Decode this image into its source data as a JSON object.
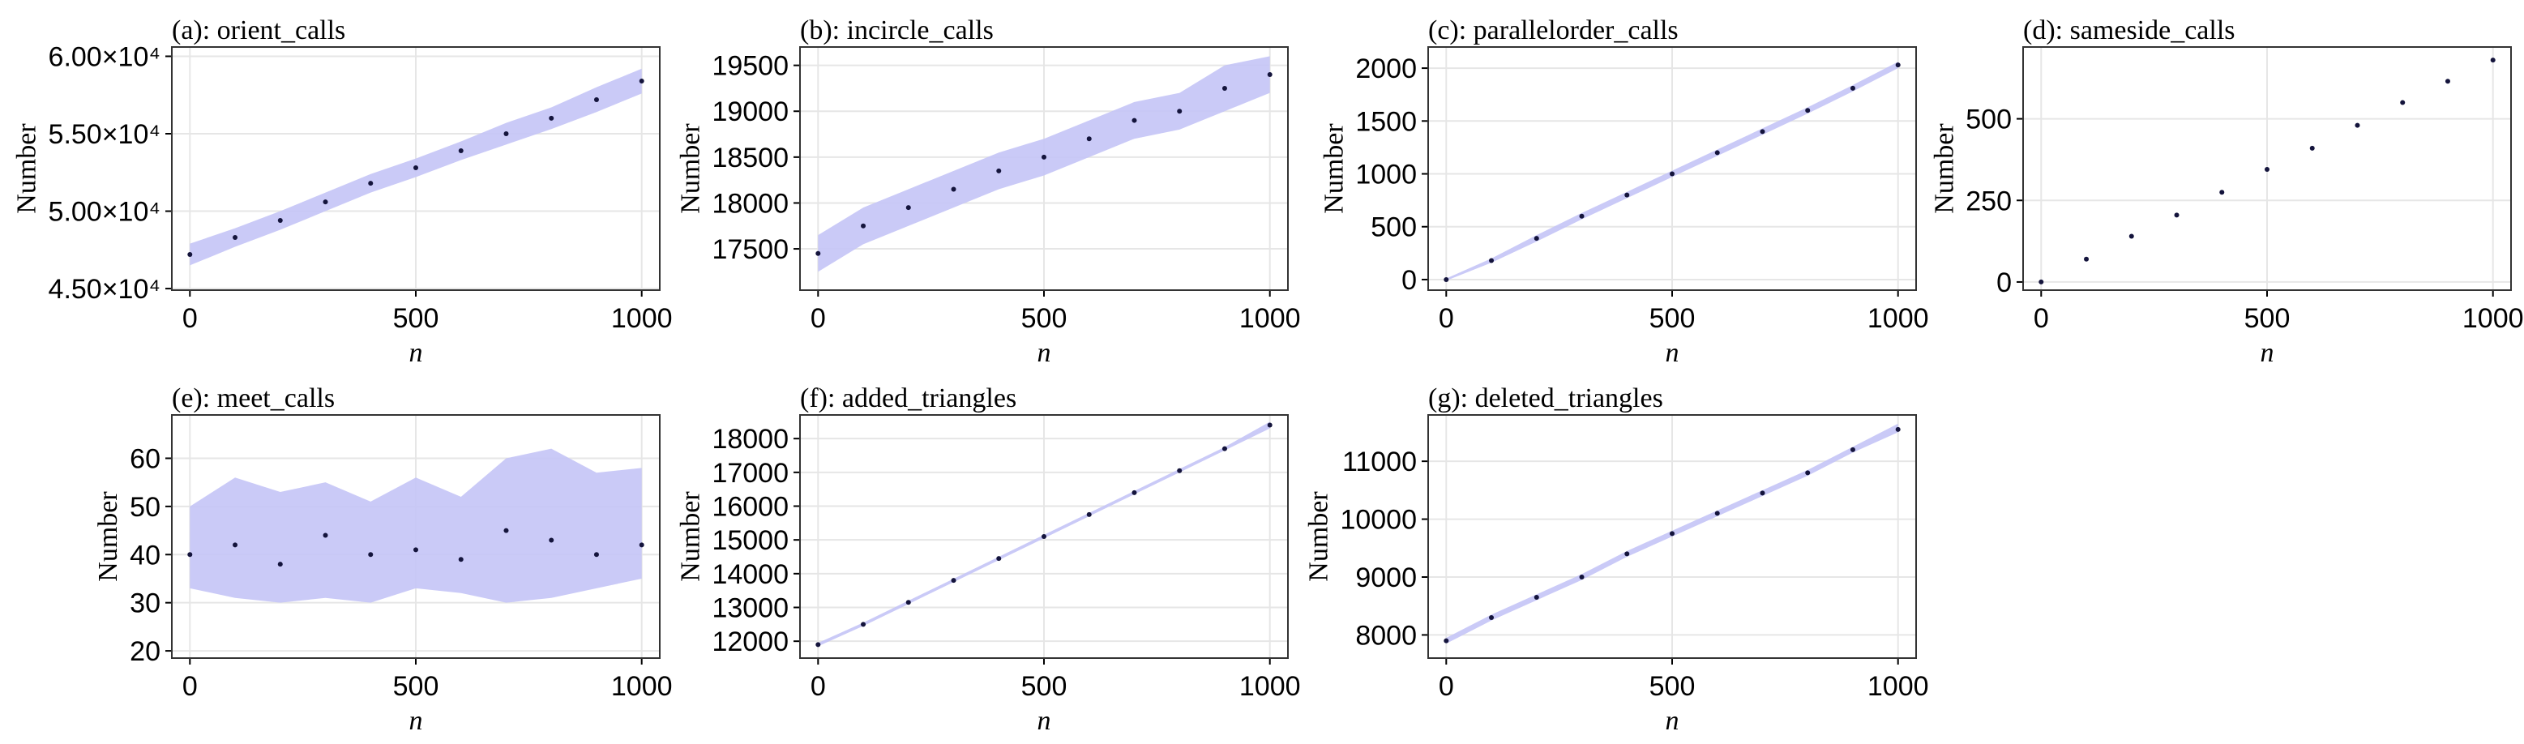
{
  "chart_data": [
    {
      "type": "scatter",
      "title": "(a): orient_calls",
      "xlabel": "n",
      "ylabel": "Number",
      "x": [
        0,
        100,
        200,
        300,
        400,
        500,
        600,
        700,
        800,
        900,
        1000
      ],
      "y": [
        47200,
        48300,
        49400,
        50600,
        51800,
        52800,
        53900,
        55000,
        56000,
        57200,
        58400
      ],
      "band_lower": [
        46500,
        47700,
        48800,
        50000,
        51200,
        52200,
        53300,
        54300,
        55300,
        56400,
        57600
      ],
      "band_upper": [
        47900,
        48900,
        50000,
        51200,
        52400,
        53400,
        54500,
        55700,
        56700,
        58000,
        59200
      ],
      "xlim": [
        -40,
        1040
      ],
      "ylim": [
        44900,
        60600
      ],
      "xticks": [
        0,
        500,
        1000
      ],
      "yticks": [
        {
          "value": 45000,
          "label": "4.50×10⁴"
        },
        {
          "value": 50000,
          "label": "5.00×10⁴"
        },
        {
          "value": 55000,
          "label": "5.50×10⁴"
        },
        {
          "value": 60000,
          "label": "6.00×10⁴"
        }
      ],
      "grid": true,
      "color": "#14143c",
      "band_color": "#c4c4f6"
    },
    {
      "type": "scatter",
      "title": "(b): incircle_calls",
      "xlabel": "n",
      "ylabel": "Number",
      "x": [
        0,
        100,
        200,
        300,
        400,
        500,
        600,
        700,
        800,
        900,
        1000
      ],
      "y": [
        17450,
        17750,
        17950,
        18150,
        18350,
        18500,
        18700,
        18900,
        19000,
        19250,
        19400
      ],
      "band_lower": [
        17250,
        17550,
        17750,
        17950,
        18150,
        18300,
        18500,
        18700,
        18800,
        19000,
        19200
      ],
      "band_upper": [
        17650,
        17950,
        18150,
        18350,
        18550,
        18700,
        18900,
        19100,
        19200,
        19500,
        19600
      ],
      "xlim": [
        -40,
        1040
      ],
      "ylim": [
        17050,
        19700
      ],
      "xticks": [
        0,
        500,
        1000
      ],
      "yticks": [
        17500,
        18000,
        18500,
        19000,
        19500
      ],
      "grid": true,
      "color": "#14143c",
      "band_color": "#c4c4f6"
    },
    {
      "type": "scatter",
      "title": "(c): parallelorder_calls",
      "xlabel": "n",
      "ylabel": "Number",
      "x": [
        0,
        100,
        200,
        300,
        400,
        500,
        600,
        700,
        800,
        900,
        1000
      ],
      "y": [
        0,
        180,
        390,
        600,
        800,
        1000,
        1200,
        1400,
        1600,
        1810,
        2030
      ],
      "band_lower": [
        -10,
        160,
        360,
        570,
        770,
        970,
        1170,
        1370,
        1570,
        1780,
        2000
      ],
      "band_upper": [
        10,
        200,
        420,
        630,
        830,
        1030,
        1230,
        1430,
        1630,
        1840,
        2060
      ],
      "xlim": [
        -40,
        1040
      ],
      "ylim": [
        -100,
        2200
      ],
      "xticks": [
        0,
        500,
        1000
      ],
      "yticks": [
        0,
        500,
        1000,
        1500,
        2000
      ],
      "grid": true,
      "color": "#14143c",
      "band_color": "#c4c4f6"
    },
    {
      "type": "scatter",
      "title": "(d): sameside_calls",
      "xlabel": "n",
      "ylabel": "Number",
      "x": [
        0,
        100,
        200,
        300,
        400,
        500,
        600,
        700,
        800,
        900,
        1000
      ],
      "y": [
        0,
        70,
        140,
        205,
        275,
        345,
        410,
        480,
        550,
        615,
        680
      ],
      "xlim": [
        -40,
        1040
      ],
      "ylim": [
        -25,
        720
      ],
      "xticks": [
        0,
        500,
        1000
      ],
      "yticks": [
        0,
        250,
        500
      ],
      "grid": true,
      "color": "#14143c",
      "band_color": "#c4c4f6"
    },
    {
      "type": "scatter",
      "title": "(e): meet_calls",
      "xlabel": "n",
      "ylabel": "Number",
      "x": [
        0,
        100,
        200,
        300,
        400,
        500,
        600,
        700,
        800,
        900,
        1000
      ],
      "y": [
        40,
        42,
        38,
        44,
        40,
        41,
        39,
        45,
        43,
        40,
        42
      ],
      "band_lower": [
        33,
        31,
        30,
        31,
        30,
        33,
        32,
        30,
        31,
        33,
        35
      ],
      "band_upper": [
        50,
        56,
        53,
        55,
        51,
        56,
        52,
        60,
        62,
        57,
        58
      ],
      "xlim": [
        -40,
        1040
      ],
      "ylim": [
        18.5,
        69
      ],
      "xticks": [
        0,
        500,
        1000
      ],
      "yticks": [
        20,
        30,
        40,
        50,
        60
      ],
      "grid": true,
      "color": "#14143c",
      "band_color": "#c4c4f6"
    },
    {
      "type": "scatter",
      "title": "(f): added_triangles",
      "xlabel": "n",
      "ylabel": "Number",
      "x": [
        0,
        100,
        200,
        300,
        400,
        500,
        600,
        700,
        800,
        900,
        1000
      ],
      "y": [
        11900,
        12500,
        13150,
        13800,
        14450,
        15100,
        15750,
        16400,
        17050,
        17700,
        18400
      ],
      "band_lower": [
        11850,
        12450,
        13100,
        13750,
        14400,
        15050,
        15700,
        16350,
        17000,
        17650,
        18300
      ],
      "band_upper": [
        11950,
        12550,
        13200,
        13850,
        14500,
        15150,
        15800,
        16450,
        17100,
        17750,
        18500
      ],
      "xlim": [
        -40,
        1040
      ],
      "ylim": [
        11500,
        18700
      ],
      "xticks": [
        0,
        500,
        1000
      ],
      "yticks": [
        12000,
        13000,
        14000,
        15000,
        16000,
        17000,
        18000
      ],
      "grid": true,
      "color": "#14143c",
      "band_color": "#c4c4f6"
    },
    {
      "type": "scatter",
      "title": "(g): deleted_triangles",
      "xlabel": "n",
      "ylabel": "Number",
      "x": [
        0,
        100,
        200,
        300,
        400,
        500,
        600,
        700,
        800,
        900,
        1000
      ],
      "y": [
        7900,
        8300,
        8650,
        9000,
        9400,
        9750,
        10100,
        10450,
        10800,
        11200,
        11550
      ],
      "band_lower": [
        7850,
        8250,
        8600,
        8950,
        9350,
        9700,
        10050,
        10400,
        10750,
        11150,
        11500
      ],
      "band_upper": [
        7950,
        8350,
        8700,
        9050,
        9450,
        9800,
        10150,
        10500,
        10850,
        11250,
        11650
      ],
      "xlim": [
        -40,
        1040
      ],
      "ylim": [
        7600,
        11800
      ],
      "xticks": [
        0,
        500,
        1000
      ],
      "yticks": [
        8000,
        9000,
        10000,
        11000
      ],
      "grid": true,
      "color": "#14143c",
      "band_color": "#c4c4f6"
    }
  ]
}
